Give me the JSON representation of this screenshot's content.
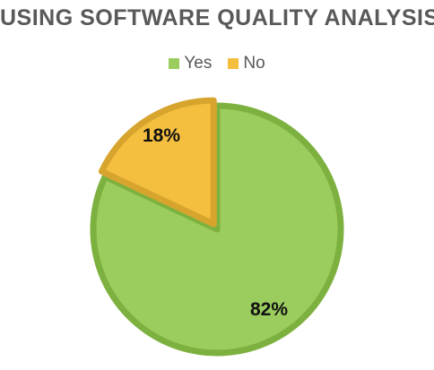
{
  "chart_data": {
    "type": "pie",
    "title": "USING SOFTWARE QUALITY ANALYSIS",
    "legend_position": "top",
    "slices": [
      {
        "label": "Yes",
        "value": 82,
        "data_label": "82%",
        "color": "#9bcc5e",
        "edge_color": "#7db13f"
      },
      {
        "label": "No",
        "value": 18,
        "data_label": "18%",
        "color": "#f4bf3f",
        "edge_color": "#d7a52e"
      }
    ]
  }
}
